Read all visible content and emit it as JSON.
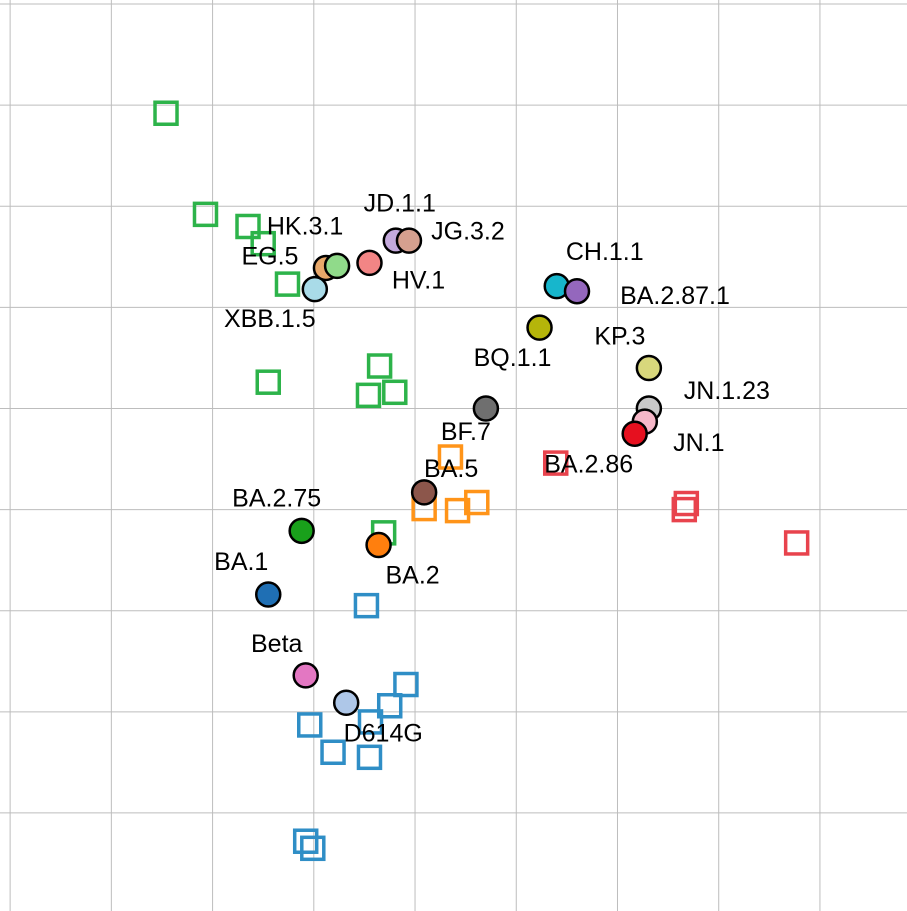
{
  "chart_data": {
    "type": "scatter",
    "xlim": [
      -0.1,
      8.86
    ],
    "ylim": [
      0.03,
      9.04
    ],
    "xticks": [
      0,
      1,
      2,
      3,
      4,
      5,
      6,
      7,
      8
    ],
    "yticks": [
      1,
      2,
      3,
      4,
      5,
      6,
      7,
      8,
      9
    ],
    "grid": true,
    "antigens": {
      "labels": [
        "XBB.1.5",
        "EG.5",
        "HK.3.1",
        "HV.1",
        "JD.1.1",
        "JG.3.2",
        "CH.1.1",
        "BA.2.87.1",
        "BQ.1.1",
        "KP.3",
        "JN.1.23",
        "JN.1",
        "BA.2.86",
        "BF.7",
        "BA.5",
        "BA.2.75",
        "BA.2",
        "BA.1",
        "Beta",
        "D614G"
      ],
      "colors": [
        "#a9dbe8",
        "#e8a86a",
        "#90da8a",
        "#f28585",
        "#c4a9dc",
        "#d5a08f",
        "#17b6cc",
        "#9467bd",
        "#b5b50a",
        "#d8d77c",
        "#c9c9c9",
        "#f6b7c8",
        "#e6101f",
        "#6f6f6f",
        "#8c564b",
        "#19a01b",
        "#ff7f0e",
        "#1f6fb4",
        "#e377c2",
        "#aec7e8"
      ],
      "x": [
        3.01,
        3.12,
        3.23,
        3.55,
        3.81,
        3.94,
        5.4,
        5.6,
        5.23,
        6.31,
        6.31,
        6.27,
        6.17,
        4.7,
        4.09,
        2.88,
        3.64,
        2.55,
        2.92,
        3.32
      ],
      "y": [
        6.18,
        6.39,
        6.41,
        6.44,
        6.66,
        6.66,
        6.21,
        6.16,
        5.8,
        5.4,
        5.0,
        4.87,
        4.75,
        5.0,
        4.17,
        3.79,
        3.65,
        3.16,
        2.36,
        2.09
      ]
    },
    "sera": [
      {
        "color": "#2db34a",
        "x": [
          1.54,
          1.93,
          2.35,
          2.5,
          2.74,
          2.55,
          3.65,
          3.54,
          3.8,
          3.69
        ],
        "y": [
          7.92,
          6.92,
          6.8,
          6.63,
          6.23,
          5.26,
          5.42,
          5.13,
          5.16,
          3.77
        ]
      },
      {
        "color": "#ff9419",
        "x": [
          4.35,
          4.09,
          4.42,
          4.61
        ],
        "y": [
          4.52,
          4.01,
          3.99,
          4.07
        ]
      },
      {
        "color": "#e8434d",
        "x": [
          5.39,
          6.68,
          6.66,
          7.77
        ],
        "y": [
          4.46,
          4.06,
          4.0,
          3.67
        ]
      },
      {
        "color": "#2f8ec6",
        "x": [
          3.52,
          3.91,
          3.75,
          3.56,
          2.96,
          3.19,
          3.55,
          2.92,
          2.99
        ],
        "y": [
          3.05,
          2.27,
          2.06,
          1.9,
          1.87,
          1.6,
          1.55,
          0.72,
          0.65
        ]
      }
    ]
  }
}
